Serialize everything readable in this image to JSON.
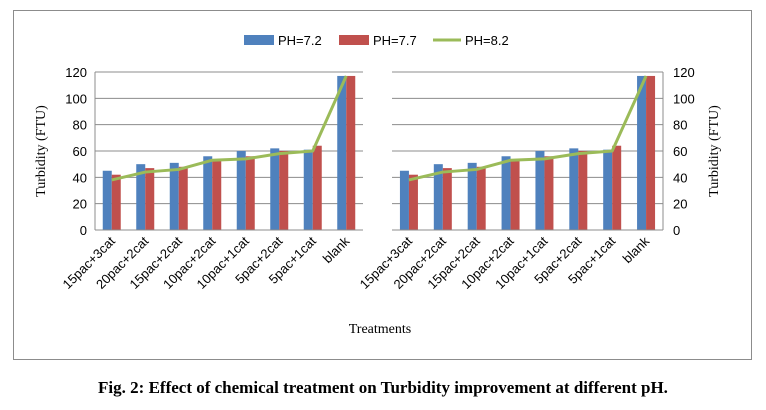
{
  "caption": "Fig. 2: Effect of chemical treatment on Turbidity improvement at different pH.",
  "chart_data": [
    {
      "type": "bar+line",
      "categories": [
        "15pac+3cat",
        "20pac+2cat",
        "15pac+2cat",
        "10pac+2cat",
        "10pac+1cat",
        "5pac+2cat",
        "5pac+1cat",
        "blank"
      ],
      "series": [
        {
          "name": "PH=7.2",
          "kind": "bar",
          "color": "#4f81bd",
          "values": [
            45,
            50,
            51,
            56,
            60,
            62,
            61,
            117
          ]
        },
        {
          "name": "PH=7.7",
          "kind": "bar",
          "color": "#c0504d",
          "values": [
            42,
            47,
            48,
            53,
            56,
            60,
            64,
            117
          ]
        },
        {
          "name": "PH=8.2",
          "kind": "line",
          "color": "#9bbb59",
          "values": [
            38,
            44,
            46,
            53,
            54,
            58,
            60,
            117
          ]
        }
      ],
      "xlabel": "Treatments",
      "ylabel": "Turbidity (FTU)",
      "ylim": [
        0,
        120
      ],
      "yticks": [
        0,
        20,
        40,
        60,
        80,
        100,
        120
      ],
      "y_axis_side": "left",
      "grid": true,
      "legend": "top-center"
    },
    {
      "type": "bar+line",
      "categories": [
        "15pac+3cat",
        "20pac+2cat",
        "15pac+2cat",
        "10pac+2cat",
        "10pac+1cat",
        "5pac+2cat",
        "5pac+1cat",
        "blank"
      ],
      "series": [
        {
          "name": "PH=7.2",
          "kind": "bar",
          "color": "#4f81bd",
          "values": [
            45,
            50,
            51,
            56,
            60,
            62,
            61,
            117
          ]
        },
        {
          "name": "PH=7.7",
          "kind": "bar",
          "color": "#c0504d",
          "values": [
            42,
            47,
            48,
            53,
            56,
            60,
            64,
            117
          ]
        },
        {
          "name": "PH=8.2",
          "kind": "line",
          "color": "#9bbb59",
          "values": [
            38,
            44,
            46,
            53,
            54,
            58,
            60,
            117
          ]
        }
      ],
      "xlabel": "",
      "ylabel": "Turbidity (FTU)",
      "ylim": [
        0,
        120
      ],
      "yticks": [
        0,
        20,
        40,
        60,
        80,
        100,
        120
      ],
      "y_axis_side": "right",
      "grid": true,
      "legend": "top-center"
    }
  ]
}
